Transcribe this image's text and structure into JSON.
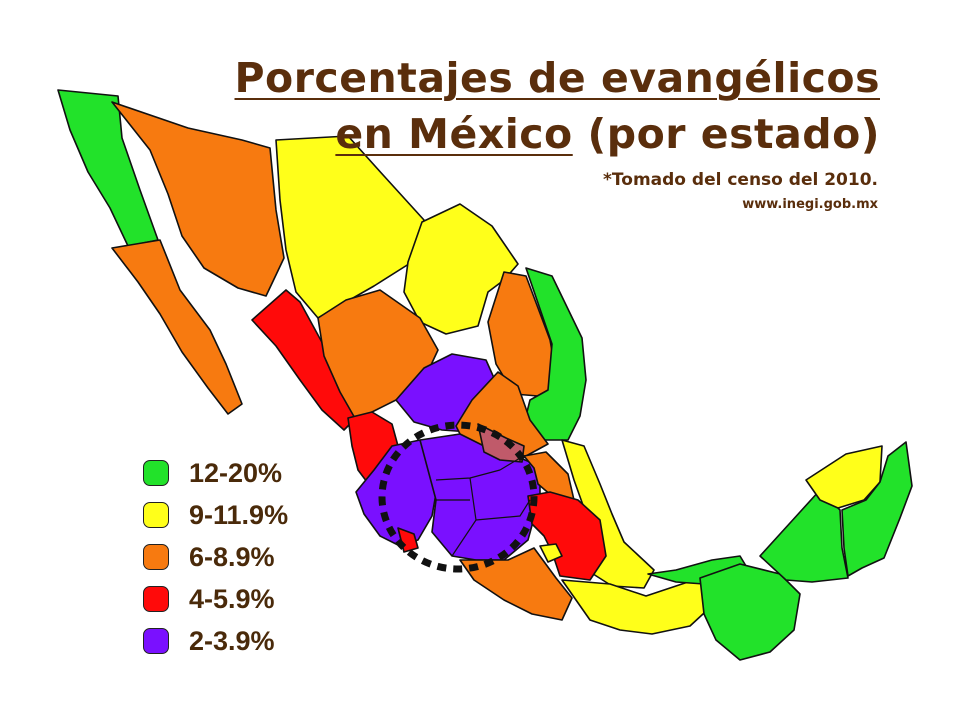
{
  "title": {
    "line1": "Porcentajes de evangélicos",
    "line2_underlined": "en México",
    "line2_rest": " (por estado)"
  },
  "source": {
    "note": "*Tomado del censo del 2010.",
    "url": "www.inegi.gob.mx"
  },
  "legend": [
    {
      "label": "12-20%",
      "color": "#22e22a"
    },
    {
      "label": "9-11.9%",
      "color": "#ffff1a"
    },
    {
      "label": "6-8.9%",
      "color": "#f77a10"
    },
    {
      "label": "4-5.9%",
      "color": "#ff0a0a"
    },
    {
      "label": "2-3.9%",
      "color": "#7a10ff"
    }
  ],
  "colors": {
    "green": "#22e22a",
    "yellow": "#ffff1a",
    "orange": "#f77a10",
    "red": "#ff0a0a",
    "purple": "#7a10ff",
    "highlight": "#c05a6a",
    "border": "#111111",
    "title": "#5a2e0c"
  },
  "map_regions": [
    {
      "id": "baja-california",
      "color": "green"
    },
    {
      "id": "baja-california-sur",
      "color": "orange"
    },
    {
      "id": "sonora",
      "color": "orange"
    },
    {
      "id": "chihuahua",
      "color": "yellow"
    },
    {
      "id": "coahuila",
      "color": "yellow"
    },
    {
      "id": "nuevo-leon",
      "color": "orange"
    },
    {
      "id": "tamaulipas",
      "color": "green"
    },
    {
      "id": "sinaloa",
      "color": "red"
    },
    {
      "id": "durango",
      "color": "orange"
    },
    {
      "id": "zacatecas",
      "color": "purple"
    },
    {
      "id": "san-luis-potosi",
      "color": "orange"
    },
    {
      "id": "nayarit",
      "color": "red"
    },
    {
      "id": "jalisco",
      "color": "purple"
    },
    {
      "id": "central-states",
      "color": "purple"
    },
    {
      "id": "queretaro",
      "color": "highlight"
    },
    {
      "id": "hidalgo",
      "color": "orange"
    },
    {
      "id": "veracruz",
      "color": "yellow"
    },
    {
      "id": "puebla-tlaxcala",
      "color": "red"
    },
    {
      "id": "mexico-city",
      "color": "yellow"
    },
    {
      "id": "colima",
      "color": "red"
    },
    {
      "id": "guerrero",
      "color": "orange"
    },
    {
      "id": "oaxaca",
      "color": "yellow"
    },
    {
      "id": "tabasco",
      "color": "green"
    },
    {
      "id": "chiapas",
      "color": "green"
    },
    {
      "id": "campeche",
      "color": "green"
    },
    {
      "id": "yucatan",
      "color": "yellow"
    },
    {
      "id": "quintana-roo",
      "color": "green"
    }
  ]
}
